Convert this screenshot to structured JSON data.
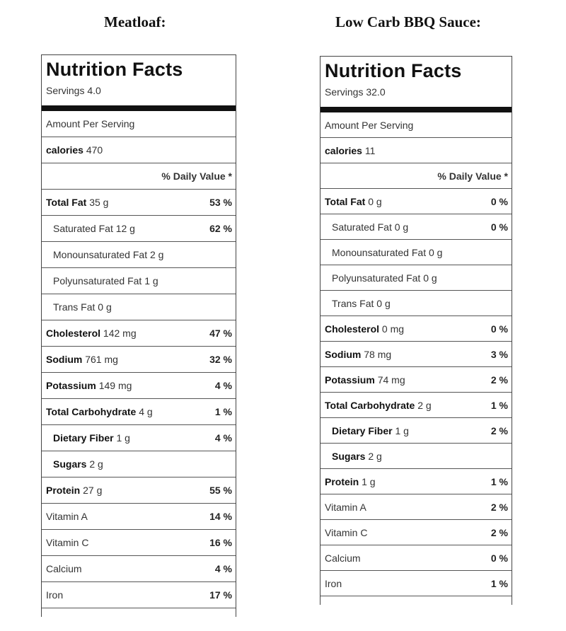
{
  "left": {
    "heading": "Meatloaf:",
    "title": "Nutrition Facts",
    "servings": "Servings 4.0",
    "amount_per_serving": "Amount Per Serving",
    "calories_label": "calories",
    "calories_value": "470",
    "daily_value_header": "% Daily Value *",
    "rows": [
      {
        "label": "Total Fat",
        "amount": "35 g",
        "pct": "53 %",
        "bold": true,
        "indent": false
      },
      {
        "label": "Saturated Fat",
        "amount": "12 g",
        "pct": "62 %",
        "bold": false,
        "indent": true
      },
      {
        "label": "Monounsaturated Fat",
        "amount": "2 g",
        "pct": "",
        "bold": false,
        "indent": true
      },
      {
        "label": "Polyunsaturated Fat",
        "amount": "1 g",
        "pct": "",
        "bold": false,
        "indent": true
      },
      {
        "label": "Trans Fat",
        "amount": "0 g",
        "pct": "",
        "bold": false,
        "indent": true
      },
      {
        "label": "Cholesterol",
        "amount": "142 mg",
        "pct": "47 %",
        "bold": true,
        "indent": false
      },
      {
        "label": "Sodium",
        "amount": "761 mg",
        "pct": "32 %",
        "bold": true,
        "indent": false
      },
      {
        "label": "Potassium",
        "amount": "149 mg",
        "pct": "4 %",
        "bold": true,
        "indent": false
      },
      {
        "label": "Total Carbohydrate",
        "amount": "4 g",
        "pct": "1 %",
        "bold": true,
        "indent": false
      },
      {
        "label": "Dietary Fiber",
        "amount": "1 g",
        "pct": "4 %",
        "bold": true,
        "indent": true
      },
      {
        "label": "Sugars",
        "amount": "2 g",
        "pct": "",
        "bold": true,
        "indent": true
      },
      {
        "label": "Protein",
        "amount": "27 g",
        "pct": "55 %",
        "bold": true,
        "indent": false
      },
      {
        "label": "Vitamin A",
        "amount": "",
        "pct": "14 %",
        "bold": false,
        "indent": false
      },
      {
        "label": "Vitamin C",
        "amount": "",
        "pct": "16 %",
        "bold": false,
        "indent": false
      },
      {
        "label": "Calcium",
        "amount": "",
        "pct": "4 %",
        "bold": false,
        "indent": false
      },
      {
        "label": "Iron",
        "amount": "",
        "pct": "17 %",
        "bold": false,
        "indent": false
      }
    ]
  },
  "right": {
    "heading": "Low Carb BBQ Sauce:",
    "title": "Nutrition Facts",
    "servings": "Servings 32.0",
    "amount_per_serving": "Amount Per Serving",
    "calories_label": "calories",
    "calories_value": "11",
    "daily_value_header": "% Daily Value *",
    "rows": [
      {
        "label": "Total Fat",
        "amount": "0 g",
        "pct": "0 %",
        "bold": true,
        "indent": false
      },
      {
        "label": "Saturated Fat",
        "amount": "0 g",
        "pct": "0 %",
        "bold": false,
        "indent": true
      },
      {
        "label": "Monounsaturated Fat",
        "amount": "0 g",
        "pct": "",
        "bold": false,
        "indent": true
      },
      {
        "label": "Polyunsaturated Fat",
        "amount": "0 g",
        "pct": "",
        "bold": false,
        "indent": true
      },
      {
        "label": "Trans Fat",
        "amount": "0 g",
        "pct": "",
        "bold": false,
        "indent": true
      },
      {
        "label": "Cholesterol",
        "amount": "0 mg",
        "pct": "0 %",
        "bold": true,
        "indent": false
      },
      {
        "label": "Sodium",
        "amount": "78 mg",
        "pct": "3 %",
        "bold": true,
        "indent": false
      },
      {
        "label": "Potassium",
        "amount": "74 mg",
        "pct": "2 %",
        "bold": true,
        "indent": false
      },
      {
        "label": "Total Carbohydrate",
        "amount": "2 g",
        "pct": "1 %",
        "bold": true,
        "indent": false
      },
      {
        "label": "Dietary Fiber",
        "amount": "1 g",
        "pct": "2 %",
        "bold": true,
        "indent": true
      },
      {
        "label": "Sugars",
        "amount": "2 g",
        "pct": "",
        "bold": true,
        "indent": true
      },
      {
        "label": "Protein",
        "amount": "1 g",
        "pct": "1 %",
        "bold": true,
        "indent": false
      },
      {
        "label": "Vitamin A",
        "amount": "",
        "pct": "2 %",
        "bold": false,
        "indent": false
      },
      {
        "label": "Vitamin C",
        "amount": "",
        "pct": "2 %",
        "bold": false,
        "indent": false
      },
      {
        "label": "Calcium",
        "amount": "",
        "pct": "0 %",
        "bold": false,
        "indent": false
      },
      {
        "label": "Iron",
        "amount": "",
        "pct": "1 %",
        "bold": false,
        "indent": false
      }
    ]
  }
}
